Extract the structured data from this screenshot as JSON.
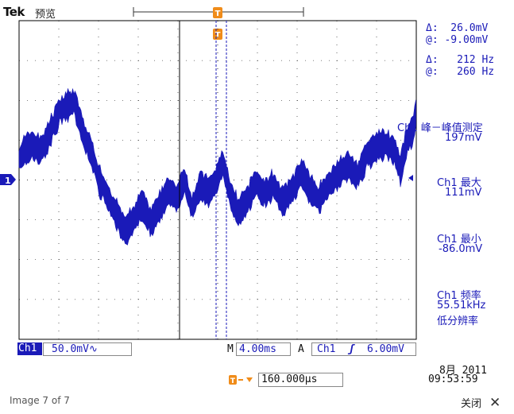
{
  "header": {
    "brand": "Tek",
    "mode": "预览",
    "trigger_marker": "T"
  },
  "cursor_readout": {
    "amp_delta": "Δ:  26.0mV",
    "amp_at": "@: -9.00mV",
    "freq_delta": "Δ:   212 Hz",
    "freq_at": "@:   260 Hz"
  },
  "measurements": [
    {
      "line1": "Ch1 峰－峰值测定",
      "line2": "197mV"
    },
    {
      "line1": "Ch1 最大",
      "line2": "111mV"
    },
    {
      "line1": "Ch1 最小",
      "line2": "-86.0mV"
    },
    {
      "line1": "Ch1 频率",
      "line2": "55.51kHz",
      "line3": "低分辨率"
    }
  ],
  "bottom_bar": {
    "channel": "Ch1",
    "scale": "50.0mV∿",
    "time_prefix": "M",
    "timebase": "4.00ms",
    "acq_mode": "A",
    "trig_channel": "Ch1",
    "trig_slope_icon": "rising-edge-icon",
    "trig_level": "6.00mV",
    "trig_offset": "160.000μs",
    "date": "8月 2011",
    "time": "09:53:59"
  },
  "channel_marker": "1",
  "viewer": {
    "counter": "Image 7 of 7",
    "close_label": "关闭"
  },
  "colors": {
    "trace": "#1a1ab8",
    "trigger": "#f08c1a",
    "grid": "#000000"
  }
}
